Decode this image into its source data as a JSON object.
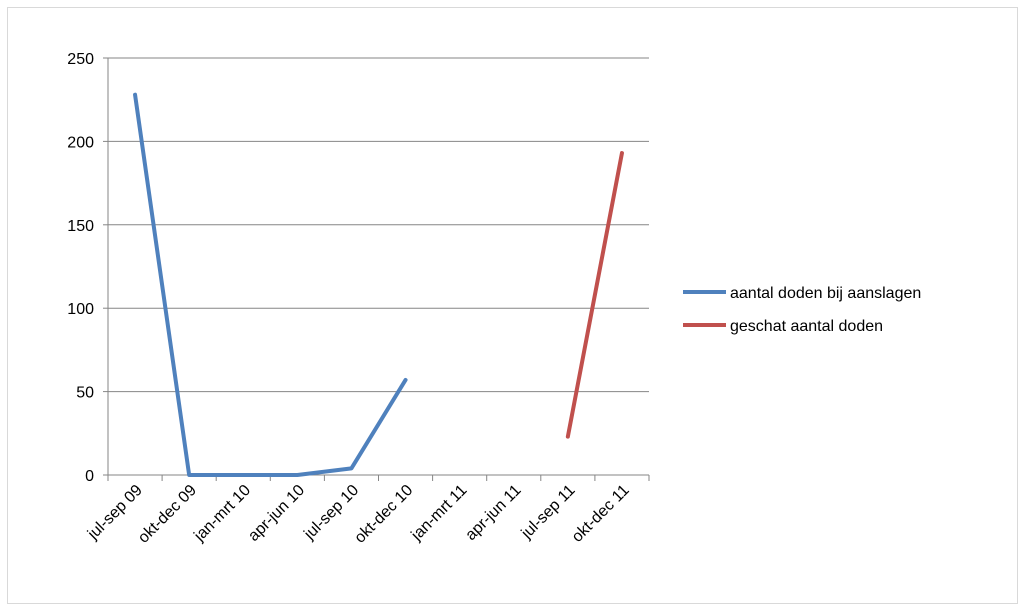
{
  "chart_data": {
    "type": "line",
    "categories": [
      "jul-sep 09",
      "okt-dec 09",
      "jan-mrt 10",
      "apr-jun 10",
      "jul-sep 10",
      "okt-dec 10",
      "jan-mrt 11",
      "apr-jun 11",
      "jul-sep 11",
      "okt-dec 11"
    ],
    "series": [
      {
        "name": "aantal doden bij aanslagen",
        "color": "#4f81bd",
        "values": [
          228,
          0,
          0,
          0,
          4,
          57,
          null,
          null,
          null,
          null
        ]
      },
      {
        "name": "geschat aantal doden",
        "color": "#c0504d",
        "values": [
          null,
          null,
          null,
          null,
          null,
          null,
          null,
          null,
          23,
          193
        ]
      }
    ],
    "yticks": [
      0,
      50,
      100,
      150,
      200,
      250
    ],
    "ylim": [
      0,
      250
    ],
    "grid": true,
    "legend": "right"
  }
}
